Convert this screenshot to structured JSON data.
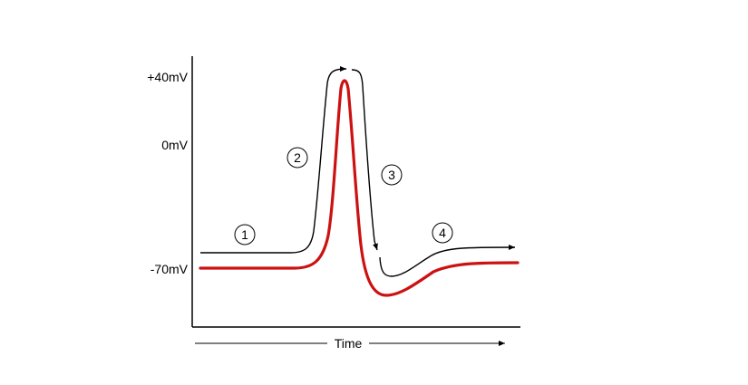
{
  "axis": {
    "y_ticks": [
      "+40mV",
      "0mV",
      "-70mV"
    ],
    "x_label": "Time"
  },
  "phases": [
    "1",
    "2",
    "3",
    "4"
  ],
  "colors": {
    "membrane_potential_curve": "#cc1111",
    "annotation_arrows": "#000000",
    "axes": "#000000"
  }
}
